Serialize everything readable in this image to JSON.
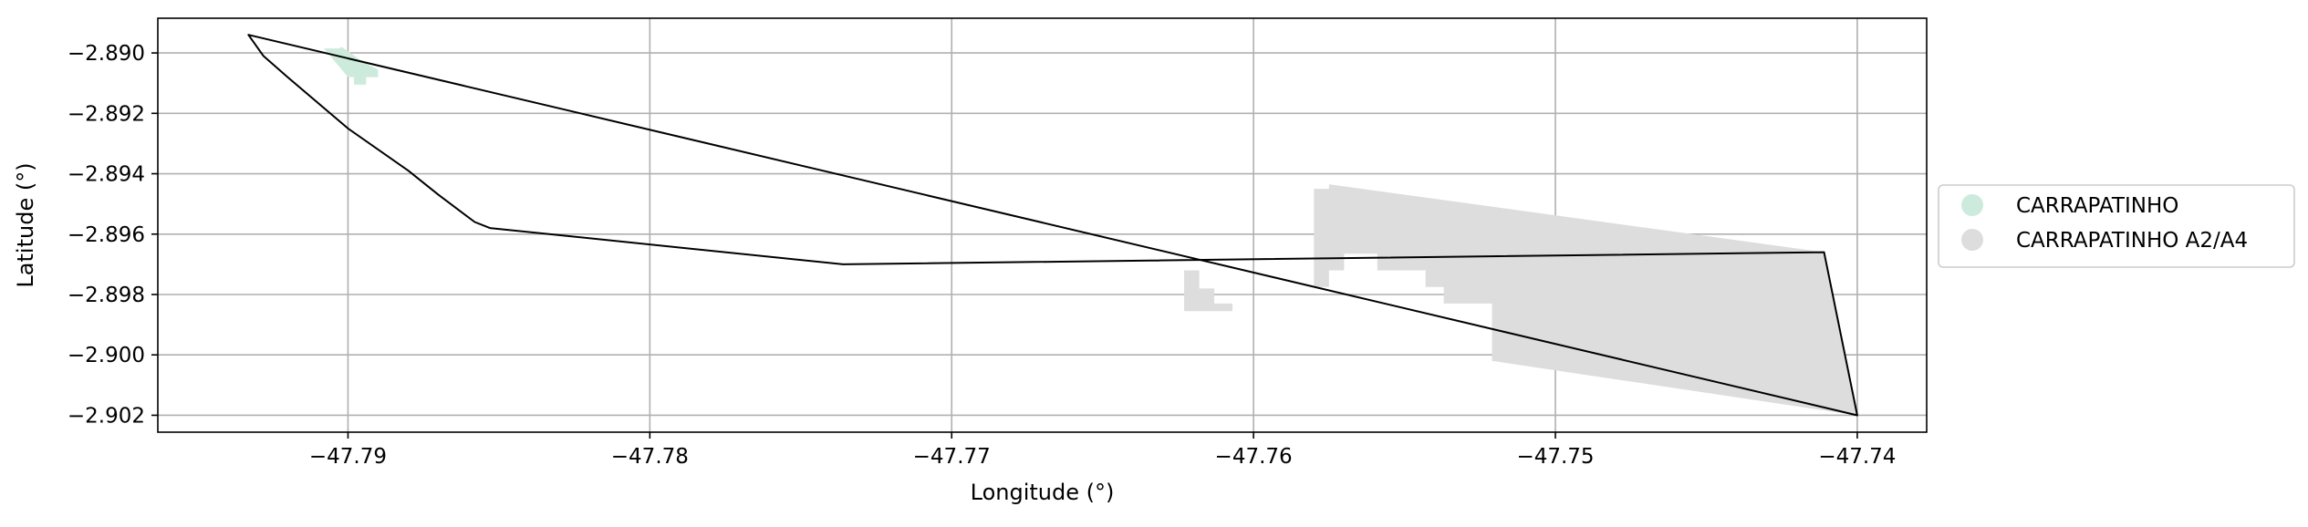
{
  "chart_data": {
    "type": "map",
    "xlabel": "Longitude (°)",
    "ylabel": "Latitude (°)",
    "xlim": [
      -47.7963,
      -47.7377
    ],
    "ylim": [
      -2.90256,
      -2.88885
    ],
    "xticks": [
      -47.79,
      -47.78,
      -47.77,
      -47.76,
      -47.75,
      -47.74
    ],
    "xtick_labels": [
      "−47.79",
      "−47.78",
      "−47.77",
      "−47.76",
      "−47.75",
      "−47.74"
    ],
    "yticks": [
      -2.89,
      -2.892,
      -2.894,
      -2.896,
      -2.898,
      -2.9,
      -2.902
    ],
    "ytick_labels": [
      "−2.890",
      "−2.892",
      "−2.894",
      "−2.896",
      "−2.898",
      "−2.900",
      "−2.902"
    ],
    "grid": true,
    "legend_position": "right",
    "legend": [
      {
        "label": "CARRAPATINHO",
        "color": "#cdebdd"
      },
      {
        "label": "CARRAPATINHO A2/A4",
        "color": "#dddddd"
      }
    ],
    "areas": [
      {
        "name": "CARRAPATINHO",
        "color": "#cdebdd",
        "polygons": [
          [
            [
              -47.7908,
              -2.88985
            ],
            [
              -47.7903,
              -2.88985
            ],
            [
              -47.7902,
              -2.8898
            ],
            [
              -47.7895,
              -2.8903
            ],
            [
              -47.789,
              -2.89055
            ],
            [
              -47.789,
              -2.8908
            ],
            [
              -47.7894,
              -2.8908
            ],
            [
              -47.7894,
              -2.89105
            ],
            [
              -47.7898,
              -2.89105
            ],
            [
              -47.7898,
              -2.8908
            ],
            [
              -47.79,
              -2.8908
            ]
          ]
        ]
      },
      {
        "name": "CARRAPATINHO A2/A4",
        "color": "#dddddd",
        "polygons": [
          [
            [
              -47.758,
              -2.8945
            ],
            [
              -47.7575,
              -2.8945
            ],
            [
              -47.7575,
              -2.89435
            ],
            [
              -47.7411,
              -2.8966
            ],
            [
              -47.74,
              -2.902
            ],
            [
              -47.7521,
              -2.9002
            ],
            [
              -47.7521,
              -2.8983
            ],
            [
              -47.7537,
              -2.8983
            ],
            [
              -47.7537,
              -2.89775
            ],
            [
              -47.7543,
              -2.89775
            ],
            [
              -47.7543,
              -2.8972
            ],
            [
              -47.7559,
              -2.8972
            ],
            [
              -47.7559,
              -2.89665
            ],
            [
              -47.757,
              -2.89665
            ],
            [
              -47.757,
              -2.8972
            ],
            [
              -47.7575,
              -2.8972
            ],
            [
              -47.7575,
              -2.89775
            ],
            [
              -47.758,
              -2.89775
            ]
          ],
          [
            [
              -47.7623,
              -2.8972
            ],
            [
              -47.7618,
              -2.8972
            ],
            [
              -47.7618,
              -2.8978
            ],
            [
              -47.7613,
              -2.8978
            ],
            [
              -47.7613,
              -2.8983
            ],
            [
              -47.7607,
              -2.8983
            ],
            [
              -47.7607,
              -2.89855
            ],
            [
              -47.7623,
              -2.89855
            ]
          ]
        ]
      }
    ],
    "boundary": {
      "color": "#000000",
      "points": [
        [
          -47.7933,
          -2.8894
        ],
        [
          -47.7928,
          -2.8901
        ],
        [
          -47.792,
          -2.8908
        ],
        [
          -47.79,
          -2.8925
        ],
        [
          -47.788,
          -2.8939
        ],
        [
          -47.787,
          -2.8947
        ],
        [
          -47.7858,
          -2.8956
        ],
        [
          -47.7853,
          -2.8958
        ],
        [
          -47.7736,
          -2.897
        ],
        [
          -47.7411,
          -2.8966
        ],
        [
          -47.74,
          -2.902
        ]
      ]
    }
  }
}
